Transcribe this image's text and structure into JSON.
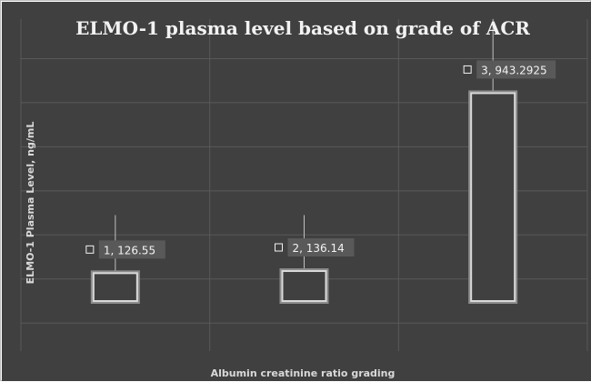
{
  "chart_data": {
    "type": "bar",
    "title": "ELMO-1 plasma level based on grade of ACR",
    "xlabel": "Albumin creatinine ratio grading",
    "ylabel": "ELMO-1 Plasma Level, ng/mL",
    "categories": [
      "1",
      "2",
      "3"
    ],
    "values": [
      126.55,
      136.14,
      943.2925
    ],
    "error_low": [
      0,
      0,
      640
    ],
    "error_high": [
      390,
      390,
      1280
    ],
    "data_labels": [
      "1, 126.55",
      "2, 136.14",
      "3, 943.2925"
    ],
    "ylim": [
      -120,
      1300
    ],
    "grid": true,
    "legend": "none",
    "colors": {
      "background": "#404040",
      "plot_area": "#404040",
      "gridline": "#595959",
      "bar_fill": "#404040",
      "bar_outline": "#d9d9d9",
      "bar_glow": "#8c8c8c",
      "error_bar": "#bfbfbf",
      "label_box": "#595959",
      "text": "#f2f2f2"
    }
  }
}
